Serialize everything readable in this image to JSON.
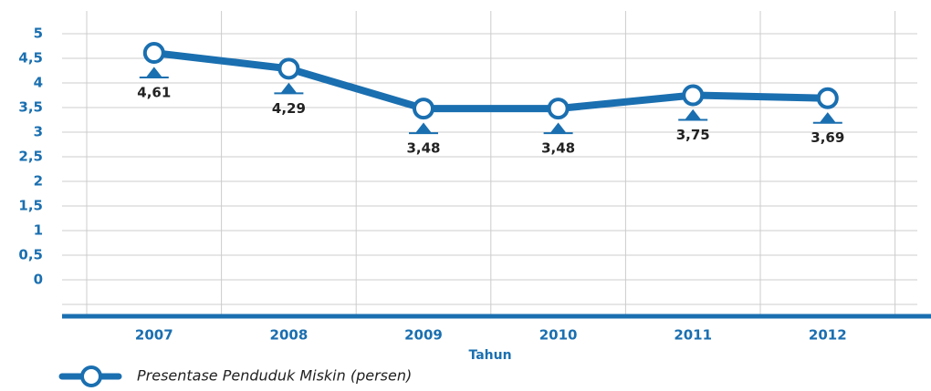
{
  "chart_data": {
    "type": "line",
    "categories": [
      "2007",
      "2008",
      "2009",
      "2010",
      "2011",
      "2012"
    ],
    "series": [
      {
        "name": "Presentase Penduduk Miskin (persen)",
        "color": "#1a6fb0",
        "values": [
          4.61,
          4.29,
          3.48,
          3.48,
          3.75,
          3.69
        ],
        "value_labels": [
          "4,61",
          "4,29",
          "3,48",
          "3,48",
          "3,75",
          "3,69"
        ]
      }
    ],
    "x_label": "Tahun",
    "ylim": [
      0,
      5
    ],
    "yticks": [
      0,
      {
        "value": 0.5,
        "label": "0,5"
      },
      1,
      {
        "value": 1.5,
        "label": "1,5"
      },
      2,
      {
        "value": 2.5,
        "label": "2,5"
      },
      3,
      {
        "value": 3.5,
        "label": "3,5"
      },
      4,
      {
        "value": 4.5,
        "label": "4,5"
      },
      5
    ],
    "grid": true
  }
}
